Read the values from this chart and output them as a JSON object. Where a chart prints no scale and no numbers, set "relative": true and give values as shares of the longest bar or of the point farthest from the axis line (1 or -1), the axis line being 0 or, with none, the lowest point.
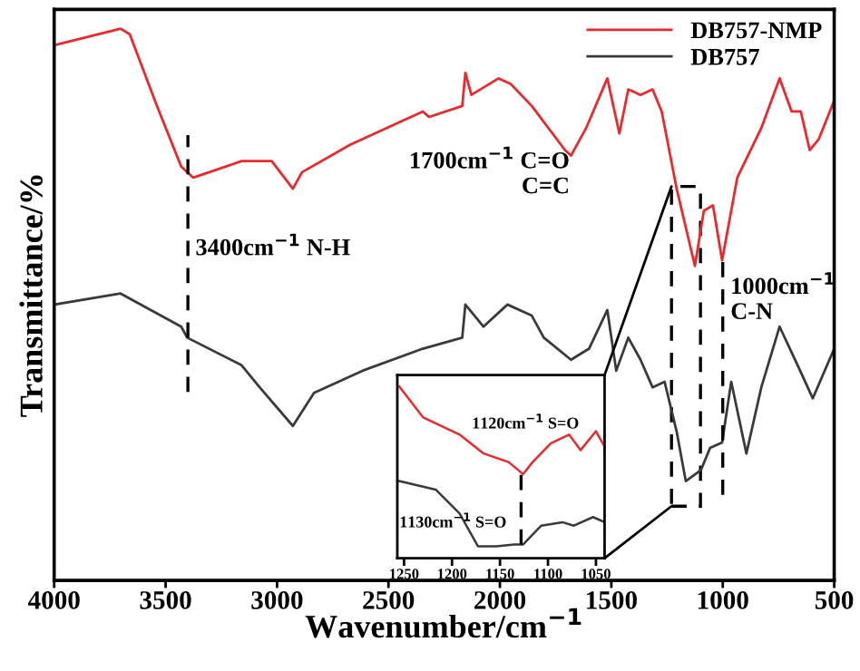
{
  "chart_data": [
    {
      "type": "line",
      "relative": true,
      "xlabel": "Wavenumber/cm$^{−1}$",
      "ylabel": "Transmittance/%",
      "xlim": [
        4000,
        500
      ],
      "xticks": [
        4000,
        3500,
        3000,
        2500,
        2000,
        1500,
        1000,
        500
      ],
      "legend": "top right",
      "grid": false,
      "series": [
        {
          "name": "DB757-NMP",
          "color": "#e8292e",
          "x": [
            4000,
            3702,
            3661,
            3539,
            3430,
            3376,
            3159,
            3024,
            2929,
            2888,
            2671,
            2346,
            2318,
            2169,
            2155,
            2128,
            2006,
            1952,
            1857,
            1708,
            1681,
            1613,
            1518,
            1464,
            1424,
            1369,
            1315,
            1274,
            1207,
            1125,
            1085,
            1044,
            1003,
            935,
            827,
            745,
            691,
            650,
            610,
            569,
            500
          ],
          "values": [
            0.97,
            1.0,
            0.99,
            0.86,
            0.75,
            0.73,
            0.76,
            0.76,
            0.71,
            0.74,
            0.79,
            0.85,
            0.84,
            0.86,
            0.92,
            0.88,
            0.91,
            0.9,
            0.86,
            0.78,
            0.77,
            0.82,
            0.91,
            0.81,
            0.89,
            0.88,
            0.89,
            0.85,
            0.71,
            0.57,
            0.67,
            0.68,
            0.58,
            0.73,
            0.82,
            0.91,
            0.85,
            0.85,
            0.78,
            0.8,
            0.87
          ]
        },
        {
          "name": "DB757",
          "color": "#3a3a3a",
          "x": [
            4000,
            3702,
            3430,
            3403,
            3159,
            3078,
            2929,
            2834,
            2617,
            2346,
            2169,
            2155,
            2074,
            1966,
            1857,
            1803,
            1681,
            1600,
            1518,
            1478,
            1424,
            1369,
            1315,
            1261,
            1207,
            1166,
            1098,
            1057,
            1003,
            962,
            894,
            827,
            745,
            664,
            596,
            500
          ],
          "values": [
            0.5,
            0.52,
            0.46,
            0.44,
            0.39,
            0.35,
            0.28,
            0.34,
            0.38,
            0.42,
            0.44,
            0.5,
            0.46,
            0.5,
            0.48,
            0.44,
            0.4,
            0.42,
            0.49,
            0.38,
            0.44,
            0.4,
            0.35,
            0.36,
            0.27,
            0.18,
            0.2,
            0.24,
            0.25,
            0.36,
            0.23,
            0.35,
            0.46,
            0.39,
            0.33,
            0.42
          ]
        }
      ],
      "ref_lines": [
        {
          "axis": "x",
          "value": 3400,
          "line_style": "dashed",
          "color": "#000000"
        },
        {
          "axis": "x",
          "value": 1000,
          "line_style": "dashed",
          "color": "#000000"
        }
      ],
      "annotations": [
        {
          "text": "3400cm$^{−1}$ N-H",
          "x": 3400,
          "y": 0.6
        },
        "1700cm$^{−1}$ C=O\nC=C",
        "1000cm$^{−1}$\nC-N"
      ]
    },
    {
      "type": "line",
      "relative": true,
      "xlim": [
        1257,
        1041
      ],
      "xticks": [
        1250,
        1200,
        1150,
        1100,
        1050
      ],
      "grid": false,
      "series": [
        {
          "color": "#e8292e",
          "x": [
            1255,
            1230,
            1192,
            1167,
            1141,
            1126,
            1116,
            1097,
            1078,
            1066,
            1050,
            1041
          ],
          "values": [
            1.0,
            0.82,
            0.72,
            0.61,
            0.56,
            0.49,
            0.56,
            0.67,
            0.72,
            0.63,
            0.74,
            0.65
          ]
        },
        {
          "color": "#3a3a3a",
          "x": [
            1255,
            1217,
            1192,
            1173,
            1154,
            1135,
            1126,
            1107,
            1085,
            1073,
            1053,
            1041
          ],
          "values": [
            0.45,
            0.4,
            0.26,
            0.07,
            0.07,
            0.08,
            0.08,
            0.19,
            0.21,
            0.19,
            0.24,
            0.21
          ]
        }
      ],
      "ref_lines": [
        {
          "axis": "x",
          "value": 1128,
          "line_style": "dashed",
          "color": "#000000"
        }
      ],
      "annotations": [
        "1120cm$^{−1}$ S=O",
        "1130cm$^{−1}$ S=O"
      ]
    }
  ]
}
